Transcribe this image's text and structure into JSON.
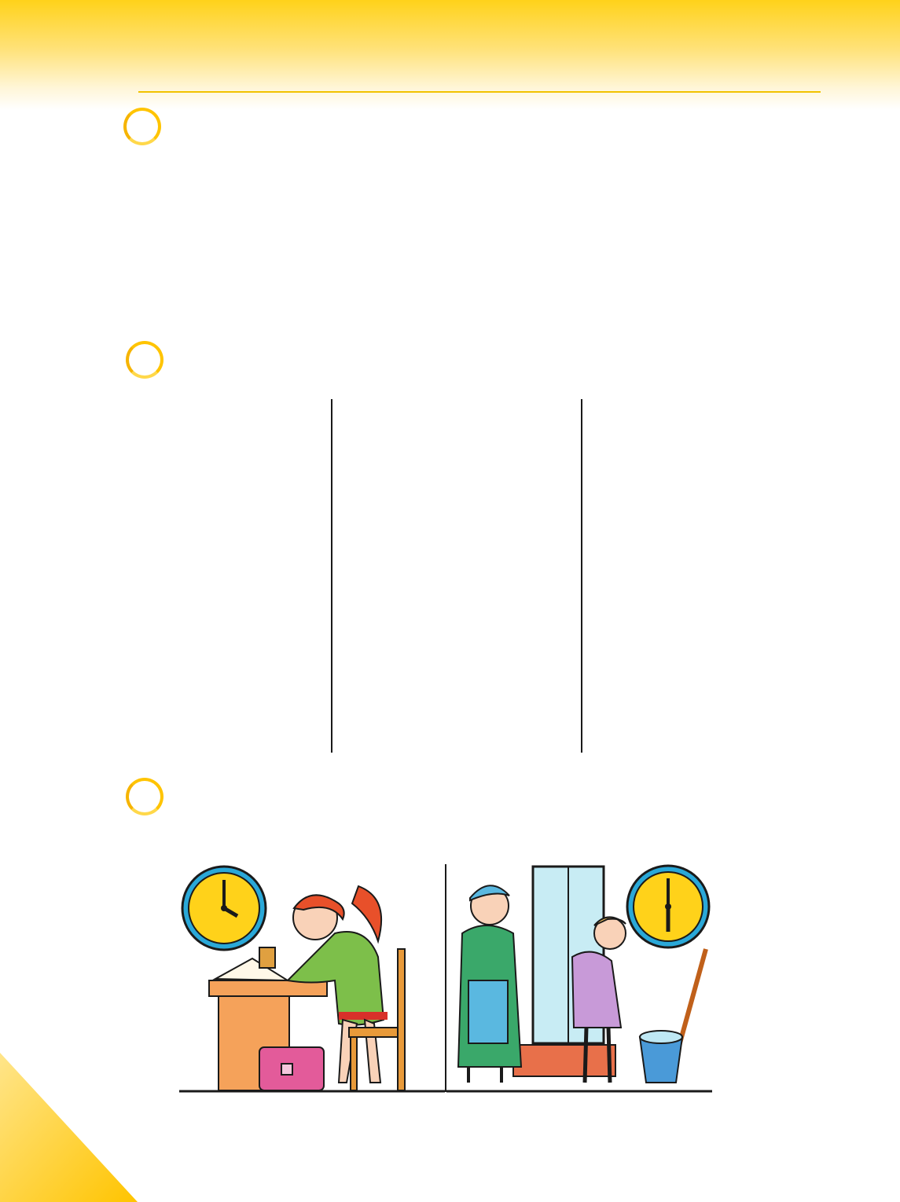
{
  "page": {
    "colors": {
      "accent_yellow": "#ffd21a",
      "circle_outline": "#ffc400",
      "line_black": "#1a1a1a"
    }
  },
  "exercises": [
    {
      "icon": "exercise-circle-icon"
    },
    {
      "icon": "exercise-circle-icon"
    },
    {
      "icon": "exercise-circle-icon"
    }
  ],
  "illustrations": {
    "left_scene": {
      "icon": "girl-doing-homework-icon",
      "clock_time": "4:00"
    },
    "right_scene": {
      "icon": "grandmother-and-girl-cleaning-window-icon",
      "clock_time": "6:00"
    }
  }
}
